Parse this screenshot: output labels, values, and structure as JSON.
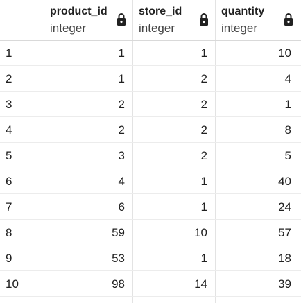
{
  "columns": [
    {
      "name": "product_id",
      "type": "integer"
    },
    {
      "name": "store_id",
      "type": "integer"
    },
    {
      "name": "quantity",
      "type": "integer"
    }
  ],
  "icons": {
    "lock": "lock-icon"
  },
  "rows": [
    {
      "n": "1",
      "product_id": "1",
      "store_id": "1",
      "quantity": "10"
    },
    {
      "n": "2",
      "product_id": "1",
      "store_id": "2",
      "quantity": "4"
    },
    {
      "n": "3",
      "product_id": "2",
      "store_id": "2",
      "quantity": "1"
    },
    {
      "n": "4",
      "product_id": "2",
      "store_id": "2",
      "quantity": "8"
    },
    {
      "n": "5",
      "product_id": "3",
      "store_id": "2",
      "quantity": "5"
    },
    {
      "n": "6",
      "product_id": "4",
      "store_id": "1",
      "quantity": "40"
    },
    {
      "n": "7",
      "product_id": "6",
      "store_id": "1",
      "quantity": "24"
    },
    {
      "n": "8",
      "product_id": "59",
      "store_id": "10",
      "quantity": "57"
    },
    {
      "n": "9",
      "product_id": "53",
      "store_id": "1",
      "quantity": "18"
    },
    {
      "n": "10",
      "product_id": "98",
      "store_id": "14",
      "quantity": "39"
    }
  ]
}
